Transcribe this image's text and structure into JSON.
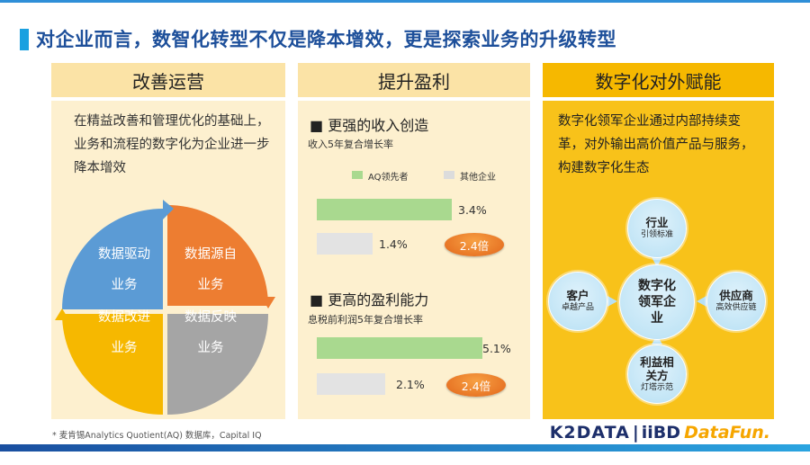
{
  "title": "对企业而言，数智化转型不仅是降本增效，更是探索业务的升级转型",
  "colors": {
    "title": "#1d4f9a",
    "accent_blue": "#1aa0e0",
    "quad_blue": "#5b9bd5",
    "quad_orange": "#ed7d31",
    "quad_yellow": "#f6b800",
    "quad_gray": "#a5a5a5"
  },
  "col1": {
    "heading": "改善运营",
    "text": "在精益改善和管理优化的基础上，业务和流程的数字化为企业进一步降本增效",
    "quadrants": [
      {
        "line1": "数据驱动",
        "line2": "业务"
      },
      {
        "line1": "数据源自",
        "line2": "业务"
      },
      {
        "line1": "数据改进",
        "line2": "业务"
      },
      {
        "line1": "数据反映",
        "line2": "业务"
      }
    ]
  },
  "col2": {
    "heading": "提升盈利",
    "section1": {
      "title": "■ 更强的收入创造",
      "subtitle": "收入5年复合增长率",
      "legend": [
        "AQ领先者",
        "其他企业"
      ],
      "bars": [
        {
          "value": 3.4,
          "label": "3.4%"
        },
        {
          "value": 1.4,
          "label": "1.4%"
        }
      ],
      "ratio": "2.4倍"
    },
    "section2": {
      "title": "■ 更高的盈利能力",
      "subtitle": "息税前利润5年复合增长率",
      "bars": [
        {
          "value": 5.1,
          "label": "5.1%"
        },
        {
          "value": 2.1,
          "label": "2.1%"
        }
      ],
      "ratio": "2.4倍"
    }
  },
  "col3": {
    "heading": "数字化对外赋能",
    "text": "数字化领军企业通过内部持续变革，对外输出高价值产品与服务，构建数字化生态",
    "center": "数字化领军企业",
    "nodes": [
      {
        "title": "行业",
        "sub": "引领标准"
      },
      {
        "title": "客户",
        "sub": "卓越产品"
      },
      {
        "title": "供应商",
        "sub": "高效供应链"
      },
      {
        "title": "利益相关方",
        "sub": "灯塔示范"
      }
    ]
  },
  "footnote": "* 麦肯锡Analytics Quotient(AQ) 数据库，Capital IQ",
  "logos": {
    "k2data": "K2DATA",
    "sep": "|",
    "iibd": "iiBD",
    "datafun": "DataFun."
  }
}
